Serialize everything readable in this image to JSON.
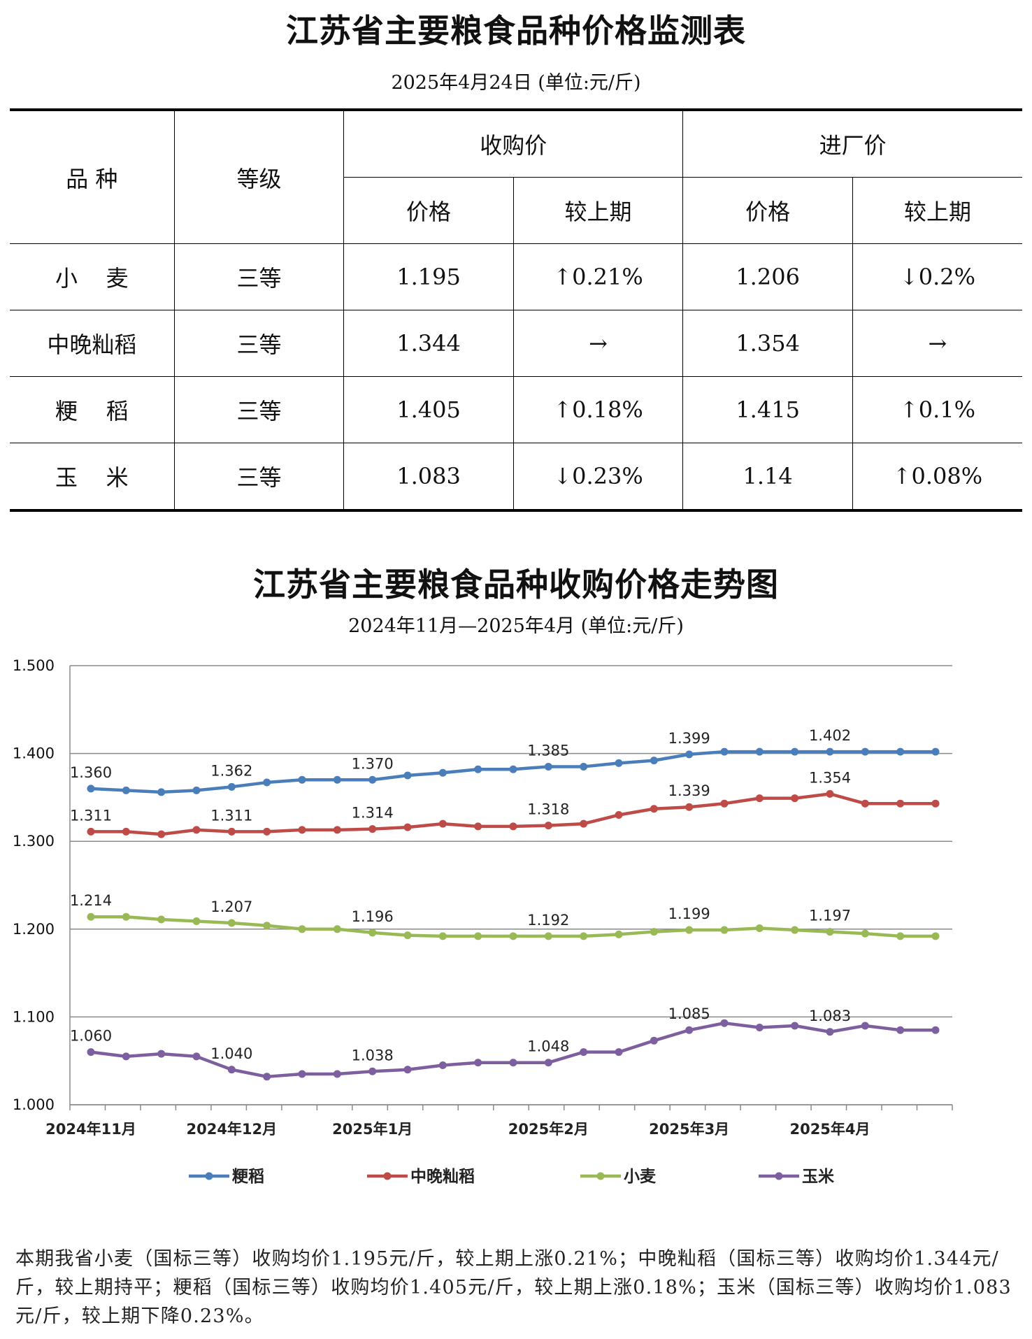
{
  "table": {
    "title": "江苏省主要粮食品种价格监测表",
    "subtitle": "2025年4月24日  (单位:元/斤)",
    "headers": {
      "variety": "品    种",
      "grade": "等级",
      "purchase": "收购价",
      "factory": "进厂价",
      "price": "价格",
      "change": "较上期"
    },
    "rows": [
      {
        "variety": "小    麦",
        "grade": "三等",
        "purchase_price": "1.195",
        "purchase_change": "↑0.21%",
        "factory_price": "1.206",
        "factory_change": "↓0.2%"
      },
      {
        "variety": "中晚籼稻",
        "grade": "三等",
        "purchase_price": "1.344",
        "purchase_change": "→",
        "factory_price": "1.354",
        "factory_change": "→"
      },
      {
        "variety": "粳    稻",
        "grade": "三等",
        "purchase_price": "1.405",
        "purchase_change": "↑0.18%",
        "factory_price": "1.415",
        "factory_change": "↑0.1%"
      },
      {
        "variety": "玉    米",
        "grade": "三等",
        "purchase_price": "1.083",
        "purchase_change": "↓0.23%",
        "factory_price": "1.14",
        "factory_change": "↑0.08%"
      }
    ]
  },
  "chart_data": {
    "type": "line",
    "title": "江苏省主要粮食品种收购价格走势图",
    "subtitle": "2024年11月—2025年4月  (单位:元/斤)",
    "xlabel": "",
    "ylabel": "",
    "ylim": [
      1.0,
      1.5
    ],
    "yticks": [
      "1.000",
      "1.100",
      "1.200",
      "1.300",
      "1.400",
      "1.500"
    ],
    "grid": true,
    "legend_position": "bottom",
    "month_labels": [
      "2024年11月",
      "2024年12月",
      "2025年1月",
      "2025年2月",
      "2025年3月",
      "2025年4月"
    ],
    "num_points": 25,
    "series": [
      {
        "name": "粳稻",
        "color": "#4a7ebb",
        "values": [
          1.36,
          1.358,
          1.356,
          1.358,
          1.362,
          1.367,
          1.37,
          1.37,
          1.37,
          1.375,
          1.378,
          1.382,
          1.382,
          1.385,
          1.385,
          1.389,
          1.392,
          1.399,
          1.402,
          1.402,
          1.402,
          1.402,
          1.402,
          1.402,
          1.402
        ],
        "labels": {
          "0": "1.360",
          "4": "1.362",
          "8": "1.370",
          "13": "1.385",
          "17": "1.399",
          "21": "1.402"
        }
      },
      {
        "name": "中晚籼稻",
        "color": "#be4b48",
        "values": [
          1.311,
          1.311,
          1.308,
          1.313,
          1.311,
          1.311,
          1.313,
          1.313,
          1.314,
          1.316,
          1.32,
          1.317,
          1.317,
          1.318,
          1.32,
          1.33,
          1.337,
          1.339,
          1.343,
          1.349,
          1.349,
          1.354,
          1.343,
          1.343,
          1.343
        ],
        "labels": {
          "0": "1.311",
          "4": "1.311",
          "8": "1.314",
          "13": "1.318",
          "17": "1.339",
          "21": "1.354"
        }
      },
      {
        "name": "小麦",
        "color": "#98b954",
        "values": [
          1.214,
          1.214,
          1.211,
          1.209,
          1.207,
          1.204,
          1.2,
          1.2,
          1.196,
          1.193,
          1.192,
          1.192,
          1.192,
          1.192,
          1.192,
          1.194,
          1.197,
          1.199,
          1.199,
          1.201,
          1.199,
          1.197,
          1.195,
          1.192,
          1.192
        ],
        "labels": {
          "0": "1.214",
          "4": "1.207",
          "8": "1.196",
          "13": "1.192",
          "17": "1.199",
          "21": "1.197"
        }
      },
      {
        "name": "玉米",
        "color": "#7d5fa0",
        "values": [
          1.06,
          1.055,
          1.058,
          1.055,
          1.04,
          1.032,
          1.035,
          1.035,
          1.038,
          1.04,
          1.045,
          1.048,
          1.048,
          1.048,
          1.06,
          1.06,
          1.073,
          1.085,
          1.093,
          1.088,
          1.09,
          1.083,
          1.09,
          1.085,
          1.085
        ],
        "labels": {
          "0": "1.060",
          "4": "1.040",
          "8": "1.038",
          "13": "1.048",
          "17": "1.085",
          "21": "1.083"
        }
      }
    ]
  },
  "note": "本期我省小麦（国标三等）收购均价1.195元/斤，较上期上涨0.21%；中晚籼稻（国标三等）收购均价1.344元/斤，较上期持平；粳稻（国标三等）收购均价1.405元/斤，较上期上涨0.18%；玉米（国标三等）收购均价1.083元/斤，较上期下降0.23%。"
}
